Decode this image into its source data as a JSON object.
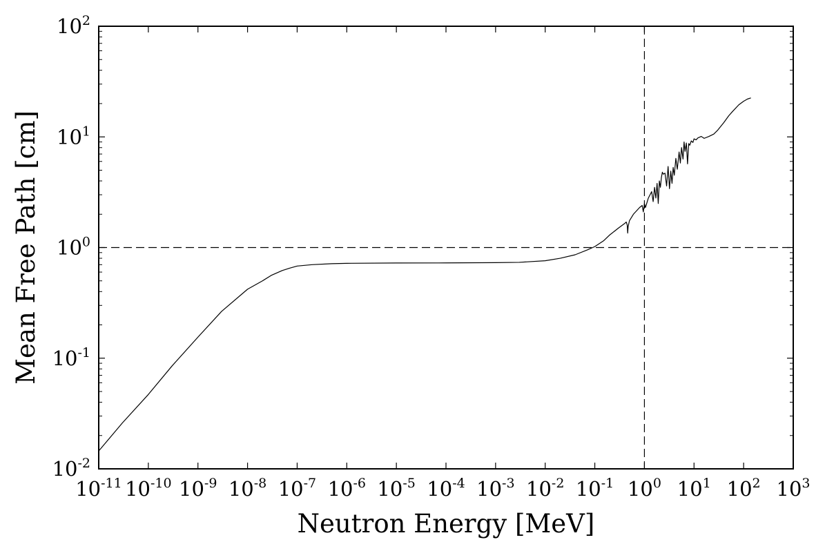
{
  "chart_data": {
    "type": "line",
    "title": "",
    "xlabel": "Neutron Energy [MeV]",
    "ylabel": "Mean Free Path [cm]",
    "xscale": "log",
    "yscale": "log",
    "xlim": [
      1e-11,
      1000
    ],
    "ylim": [
      0.01,
      100
    ],
    "grid": false,
    "legend": "none",
    "line_color": "#000000",
    "x_ticks": [
      {
        "base": "10",
        "exp": "-11",
        "value": 1e-11
      },
      {
        "base": "10",
        "exp": "-10",
        "value": 1e-10
      },
      {
        "base": "10",
        "exp": "-9",
        "value": 1e-09
      },
      {
        "base": "10",
        "exp": "-8",
        "value": 1e-08
      },
      {
        "base": "10",
        "exp": "-7",
        "value": 1e-07
      },
      {
        "base": "10",
        "exp": "-6",
        "value": 1e-06
      },
      {
        "base": "10",
        "exp": "-5",
        "value": 1e-05
      },
      {
        "base": "10",
        "exp": "-4",
        "value": 0.0001
      },
      {
        "base": "10",
        "exp": "-3",
        "value": 0.001
      },
      {
        "base": "10",
        "exp": "-2",
        "value": 0.01
      },
      {
        "base": "10",
        "exp": "-1",
        "value": 0.1
      },
      {
        "base": "10",
        "exp": "0",
        "value": 1
      },
      {
        "base": "10",
        "exp": "1",
        "value": 10
      },
      {
        "base": "10",
        "exp": "2",
        "value": 100
      },
      {
        "base": "10",
        "exp": "3",
        "value": 1000
      }
    ],
    "y_ticks": [
      {
        "base": "10",
        "exp": "-2",
        "value": 0.01
      },
      {
        "base": "10",
        "exp": "-1",
        "value": 0.1
      },
      {
        "base": "10",
        "exp": "0",
        "value": 1
      },
      {
        "base": "10",
        "exp": "1",
        "value": 10
      },
      {
        "base": "10",
        "exp": "2",
        "value": 100
      }
    ],
    "reference_lines": [
      {
        "orientation": "horizontal",
        "value": 1,
        "style": "dashed"
      },
      {
        "orientation": "vertical",
        "value": 1,
        "style": "dashed"
      }
    ],
    "series": [
      {
        "x": [
          1e-11,
          3e-11,
          1e-10,
          3e-10,
          1e-09,
          3e-09,
          1e-08,
          2e-08,
          3e-08,
          5e-08,
          7e-08,
          1e-07,
          2e-07,
          5e-07,
          1e-06,
          1e-05,
          0.0001,
          0.001,
          0.003,
          0.01,
          0.02,
          0.04,
          0.07,
          0.1,
          0.15,
          0.2,
          0.3,
          0.4,
          0.43,
          0.45,
          0.46,
          0.47,
          0.5,
          0.6,
          0.8,
          0.9,
          0.95,
          1.0,
          1.05,
          1.2,
          1.4,
          1.5,
          1.6,
          1.7,
          1.8,
          1.9,
          2.0,
          2.1,
          2.2,
          2.3,
          2.4,
          2.6,
          2.8,
          3.0,
          3.2,
          3.4,
          3.6,
          3.8,
          4.0,
          4.3,
          4.6,
          5.0,
          5.3,
          5.6,
          6.0,
          6.3,
          6.6,
          7.0,
          7.4,
          7.8,
          8.2,
          8.8,
          9.5,
          10,
          11,
          12,
          14,
          16,
          20,
          25,
          30,
          40,
          50,
          60,
          80,
          100,
          120,
          140
        ],
        "y": [
          0.0145,
          0.026,
          0.047,
          0.085,
          0.155,
          0.265,
          0.42,
          0.5,
          0.56,
          0.62,
          0.65,
          0.68,
          0.7,
          0.715,
          0.72,
          0.725,
          0.726,
          0.73,
          0.735,
          0.76,
          0.8,
          0.86,
          0.95,
          1.02,
          1.15,
          1.3,
          1.5,
          1.65,
          1.7,
          1.6,
          1.35,
          1.55,
          1.75,
          2.0,
          2.3,
          2.4,
          2.1,
          2.5,
          2.3,
          2.8,
          3.2,
          2.6,
          3.5,
          2.8,
          3.8,
          2.5,
          4.0,
          3.5,
          4.3,
          4.8,
          4.6,
          4.7,
          3.6,
          5.4,
          3.4,
          4.9,
          3.8,
          5.3,
          4.5,
          6.4,
          5.1,
          7.3,
          5.8,
          8.0,
          6.3,
          9.0,
          7.4,
          8.8,
          5.7,
          8.7,
          8.4,
          9.2,
          8.9,
          9.6,
          9.4,
          9.8,
          10.1,
          9.7,
          10.1,
          10.6,
          11.5,
          13.5,
          15.5,
          17.0,
          19.5,
          21.0,
          22.0,
          22.5
        ]
      }
    ]
  }
}
